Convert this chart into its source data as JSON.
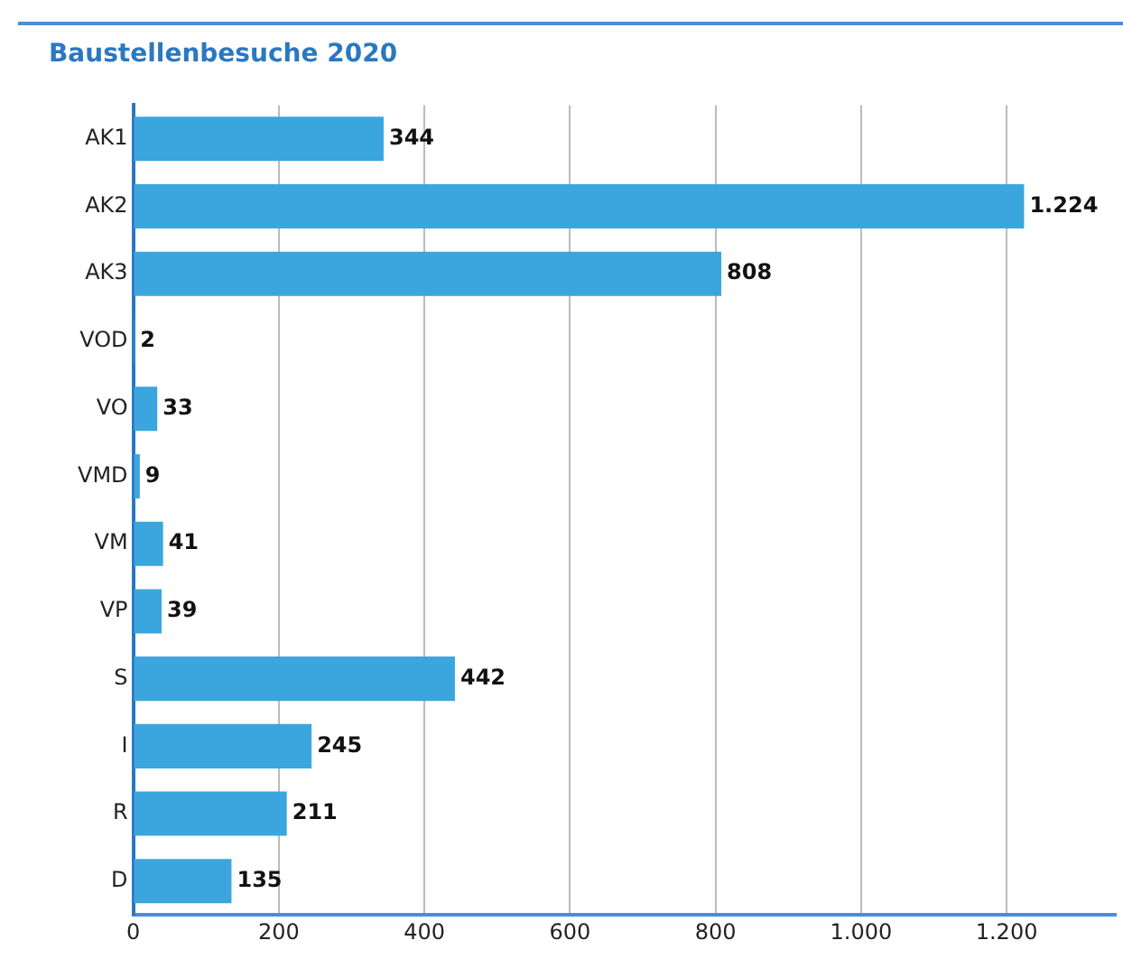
{
  "chart_data": {
    "type": "bar",
    "orientation": "horizontal",
    "title": "Baustellenbesuche 2020",
    "categories": [
      "AK1",
      "AK2",
      "AK3",
      "VOD",
      "VO",
      "VMD",
      "VM",
      "VP",
      "S",
      "I",
      "R",
      "D"
    ],
    "values": [
      344,
      1224,
      808,
      2,
      33,
      9,
      41,
      39,
      442,
      245,
      211,
      135
    ],
    "value_labels": [
      "344",
      "1.224",
      "808",
      "2",
      "33",
      "9",
      "41",
      "39",
      "442",
      "245",
      "211",
      "135"
    ],
    "color": "#3ba6dd",
    "xlim": [
      0,
      1350
    ],
    "xticks": [
      0,
      200,
      400,
      600,
      800,
      {
        "value": 1000,
        "label": "1.000"
      },
      {
        "value": 1200,
        "label": "1.200"
      }
    ],
    "grid": "x"
  }
}
